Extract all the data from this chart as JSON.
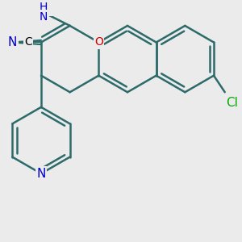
{
  "bg_color": "#ebebeb",
  "bond_color": "#2d6b6b",
  "bond_width": 1.8,
  "atom_colors": {
    "N": "#0000cc",
    "O": "#cc0000",
    "Cl": "#00aa00",
    "C": "#000000",
    "H": "#000000"
  },
  "font_size_main": 10,
  "font_size_cl": 10,
  "fig_size": [
    3.0,
    3.0
  ],
  "dpi": 100,
  "xlim": [
    -1.5,
    8.5
  ],
  "ylim": [
    -4.5,
    4.5
  ]
}
